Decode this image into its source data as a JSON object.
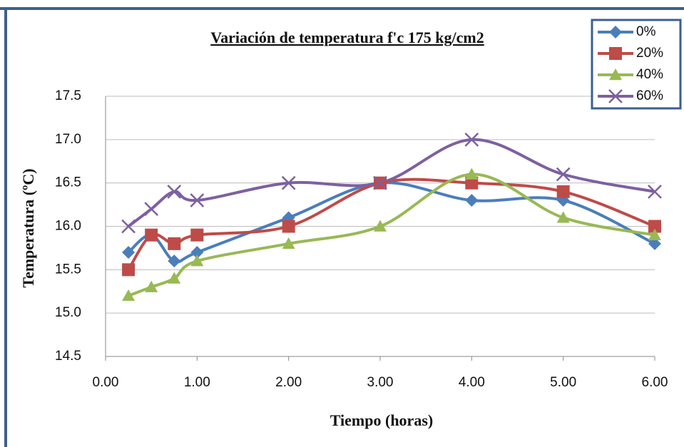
{
  "chart_data": {
    "type": "line",
    "title": "Variación de temperatura f'c 175 kg/cm2",
    "x_label": "Tiempo (horas)",
    "y_label": "Temperatura (ºC)",
    "x": [
      0.25,
      0.5,
      0.75,
      1,
      2,
      3,
      4,
      5,
      6
    ],
    "series": [
      {
        "name": "0%",
        "color": "#4a7ebb",
        "marker": "diamond",
        "values": [
          15.7,
          15.9,
          15.6,
          15.7,
          16.1,
          16.5,
          16.3,
          16.3,
          15.8
        ]
      },
      {
        "name": "20%",
        "color": "#be4b48",
        "marker": "square",
        "values": [
          15.5,
          15.9,
          15.8,
          15.9,
          16.0,
          16.5,
          16.5,
          16.4,
          16.0
        ]
      },
      {
        "name": "40%",
        "color": "#98b954",
        "marker": "triangle",
        "values": [
          15.2,
          15.3,
          15.4,
          15.6,
          15.8,
          16.0,
          16.6,
          16.1,
          15.9
        ]
      },
      {
        "name": "60%",
        "color": "#7d60a0",
        "marker": "x",
        "values": [
          16.0,
          16.2,
          16.4,
          16.3,
          16.5,
          16.5,
          17.0,
          16.6,
          16.4
        ]
      }
    ],
    "xlim": [
      0,
      6
    ],
    "xticks": [
      {
        "value": 0,
        "label": "0.00"
      },
      {
        "value": 1,
        "label": "1.00"
      },
      {
        "value": 2,
        "label": "2.00"
      },
      {
        "value": 3,
        "label": "3.00"
      },
      {
        "value": 4,
        "label": "4.00"
      },
      {
        "value": 5,
        "label": "5.00"
      },
      {
        "value": 6,
        "label": "6.00"
      }
    ],
    "ylim": [
      14.5,
      17.5
    ],
    "yticks": [
      14.5,
      {
        "value": 15,
        "label": "15.0"
      },
      15.5,
      {
        "value": 16,
        "label": "16.0"
      },
      16.5,
      {
        "value": 17,
        "label": "17.0"
      },
      17.5
    ],
    "grid": true,
    "legend": "top-right"
  }
}
